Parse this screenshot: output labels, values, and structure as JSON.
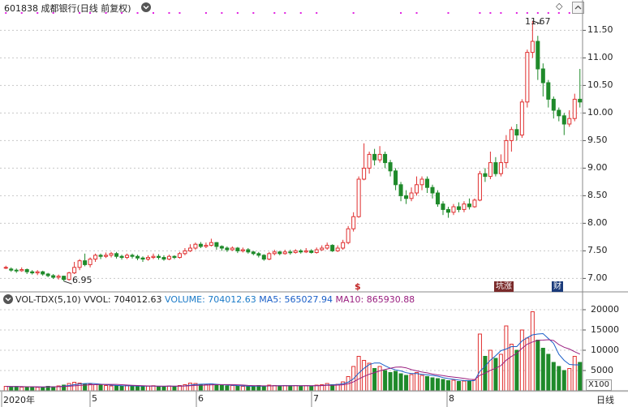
{
  "header": {
    "code": "601838",
    "name": "成都银行",
    "mode": "(日线 前复权)",
    "dropdown_icon": "chevron-down-icon",
    "diamond_icon": "diamond-icon",
    "scroll_icon": "chevron-up-icon"
  },
  "price_chart": {
    "axis_ticks": [
      "11.50",
      "11.00",
      "10.50",
      "10.00",
      "9.50",
      "9.00",
      "8.50",
      "8.00",
      "7.50",
      "7.00"
    ],
    "high_label": "11.67",
    "low_label": "6.95",
    "markers": [
      "$",
      "坑涨",
      "财"
    ]
  },
  "volume_panel": {
    "indicator": "VOL-TDX(5,10)",
    "vvol": "VVOL: 704012.63",
    "volume": "VOLUME: 704012.63",
    "ma5": "MA5: 565027.94",
    "ma10": "MA10: 865930.88",
    "axis_ticks": [
      "20000",
      "15000",
      "10000",
      "5000"
    ],
    "unit": "X100"
  },
  "time_axis": {
    "labels": [
      "2020年",
      "5",
      "6",
      "7",
      "8"
    ],
    "period": "日线"
  },
  "colors": {
    "up": "#e03030",
    "down": "#1f8a2a",
    "ma5": "#1a5fc8",
    "ma10": "#9a2080",
    "grid": "#c8c8c8",
    "marker_dots": "#e020e0"
  },
  "chart_data": {
    "type": "candlestick",
    "price_range": [
      6.8,
      11.8
    ],
    "volume_range": [
      0,
      21000
    ],
    "candles": [
      [
        7.2,
        7.2,
        7.23,
        7.17
      ],
      [
        7.17,
        7.15,
        7.2,
        7.12
      ],
      [
        7.15,
        7.14,
        7.18,
        7.1
      ],
      [
        7.14,
        7.16,
        7.2,
        7.12
      ],
      [
        7.16,
        7.12,
        7.18,
        7.08
      ],
      [
        7.12,
        7.1,
        7.15,
        7.07
      ],
      [
        7.1,
        7.12,
        7.15,
        7.06
      ],
      [
        7.12,
        7.08,
        7.14,
        7.05
      ],
      [
        7.08,
        7.05,
        7.1,
        7.02
      ],
      [
        7.05,
        7.02,
        7.08,
        6.99
      ],
      [
        7.02,
        7.04,
        7.07,
        6.98
      ],
      [
        7.04,
        6.98,
        7.05,
        6.95
      ],
      [
        6.98,
        7.1,
        7.12,
        6.96
      ],
      [
        7.1,
        7.2,
        7.3,
        7.08
      ],
      [
        7.2,
        7.32,
        7.35,
        7.15
      ],
      [
        7.32,
        7.25,
        7.45,
        7.22
      ],
      [
        7.25,
        7.35,
        7.38,
        7.2
      ],
      [
        7.35,
        7.42,
        7.45,
        7.3
      ],
      [
        7.42,
        7.4,
        7.45,
        7.35
      ],
      [
        7.4,
        7.42,
        7.47,
        7.37
      ],
      [
        7.42,
        7.45,
        7.48,
        7.38
      ],
      [
        7.45,
        7.4,
        7.48,
        7.36
      ],
      [
        7.4,
        7.38,
        7.43,
        7.34
      ],
      [
        7.38,
        7.42,
        7.45,
        7.35
      ],
      [
        7.42,
        7.4,
        7.45,
        7.36
      ],
      [
        7.4,
        7.37,
        7.43,
        7.33
      ],
      [
        7.37,
        7.35,
        7.4,
        7.3
      ],
      [
        7.35,
        7.38,
        7.42,
        7.32
      ],
      [
        7.38,
        7.4,
        7.45,
        7.35
      ],
      [
        7.4,
        7.38,
        7.44,
        7.34
      ],
      [
        7.38,
        7.35,
        7.42,
        7.32
      ],
      [
        7.35,
        7.4,
        7.43,
        7.33
      ],
      [
        7.4,
        7.38,
        7.42,
        7.35
      ],
      [
        7.38,
        7.45,
        7.48,
        7.36
      ],
      [
        7.45,
        7.5,
        7.55,
        7.42
      ],
      [
        7.5,
        7.55,
        7.62,
        7.48
      ],
      [
        7.55,
        7.62,
        7.65,
        7.52
      ],
      [
        7.62,
        7.58,
        7.66,
        7.55
      ],
      [
        7.58,
        7.6,
        7.65,
        7.55
      ],
      [
        7.6,
        7.65,
        7.72,
        7.58
      ],
      [
        7.65,
        7.58,
        7.66,
        7.52
      ],
      [
        7.58,
        7.55,
        7.6,
        7.5
      ],
      [
        7.55,
        7.52,
        7.58,
        7.48
      ],
      [
        7.52,
        7.55,
        7.58,
        7.5
      ],
      [
        7.55,
        7.5,
        7.57,
        7.46
      ],
      [
        7.5,
        7.52,
        7.56,
        7.47
      ],
      [
        7.52,
        7.48,
        7.55,
        7.45
      ],
      [
        7.48,
        7.45,
        7.5,
        7.42
      ],
      [
        7.45,
        7.42,
        7.48,
        7.38
      ],
      [
        7.42,
        7.35,
        7.44,
        7.32
      ],
      [
        7.35,
        7.45,
        7.48,
        7.33
      ],
      [
        7.45,
        7.48,
        7.52,
        7.42
      ],
      [
        7.48,
        7.45,
        7.5,
        7.42
      ],
      [
        7.45,
        7.48,
        7.52,
        7.43
      ],
      [
        7.48,
        7.47,
        7.52,
        7.43
      ],
      [
        7.47,
        7.5,
        7.53,
        7.45
      ],
      [
        7.5,
        7.48,
        7.53,
        7.45
      ],
      [
        7.48,
        7.5,
        7.55,
        7.46
      ],
      [
        7.5,
        7.47,
        7.53,
        7.45
      ],
      [
        7.47,
        7.52,
        7.56,
        7.45
      ],
      [
        7.52,
        7.55,
        7.6,
        7.5
      ],
      [
        7.55,
        7.6,
        7.65,
        7.52
      ],
      [
        7.6,
        7.5,
        7.62,
        7.48
      ],
      [
        7.5,
        7.55,
        7.6,
        7.48
      ],
      [
        7.55,
        7.65,
        7.7,
        7.52
      ],
      [
        7.65,
        7.9,
        7.95,
        7.62
      ],
      [
        7.9,
        8.12,
        8.2,
        7.85
      ],
      [
        8.12,
        8.8,
        8.85,
        8.1
      ],
      [
        8.8,
        9.0,
        9.45,
        8.78
      ],
      [
        9.0,
        9.25,
        9.3,
        8.9
      ],
      [
        9.25,
        9.15,
        9.35,
        9.05
      ],
      [
        9.15,
        9.25,
        9.4,
        9.1
      ],
      [
        9.25,
        9.1,
        9.3,
        9.0
      ],
      [
        9.1,
        8.95,
        9.15,
        8.85
      ],
      [
        8.95,
        8.7,
        9.0,
        8.6
      ],
      [
        8.7,
        8.5,
        8.75,
        8.4
      ],
      [
        8.5,
        8.45,
        8.6,
        8.35
      ],
      [
        8.45,
        8.55,
        8.65,
        8.4
      ],
      [
        8.55,
        8.7,
        8.85,
        8.5
      ],
      [
        8.7,
        8.8,
        8.85,
        8.6
      ],
      [
        8.8,
        8.65,
        8.85,
        8.55
      ],
      [
        8.65,
        8.55,
        8.7,
        8.45
      ],
      [
        8.55,
        8.35,
        8.6,
        8.3
      ],
      [
        8.35,
        8.25,
        8.4,
        8.15
      ],
      [
        8.25,
        8.2,
        8.3,
        8.1
      ],
      [
        8.2,
        8.3,
        8.35,
        8.15
      ],
      [
        8.3,
        8.25,
        8.38,
        8.2
      ],
      [
        8.25,
        8.35,
        8.4,
        8.2
      ],
      [
        8.35,
        8.3,
        8.45,
        8.25
      ],
      [
        8.3,
        8.42,
        8.45,
        8.28
      ],
      [
        8.42,
        8.9,
        8.95,
        8.4
      ],
      [
        8.9,
        8.85,
        9.0,
        8.75
      ],
      [
        8.85,
        9.1,
        9.3,
        8.8
      ],
      [
        9.1,
        8.9,
        9.2,
        8.85
      ],
      [
        8.9,
        9.1,
        9.25,
        8.85
      ],
      [
        9.1,
        9.5,
        9.6,
        9.0
      ],
      [
        9.5,
        9.7,
        9.75,
        9.3
      ],
      [
        9.7,
        9.6,
        9.8,
        9.5
      ],
      [
        9.6,
        10.2,
        10.25,
        9.55
      ],
      [
        10.2,
        11.1,
        11.15,
        10.1
      ],
      [
        11.1,
        11.3,
        11.67,
        11.0
      ],
      [
        11.3,
        10.8,
        11.4,
        10.6
      ],
      [
        10.8,
        10.55,
        10.9,
        10.3
      ],
      [
        10.55,
        10.25,
        10.6,
        10.1
      ],
      [
        10.25,
        10.05,
        10.3,
        9.9
      ],
      [
        10.05,
        9.95,
        10.1,
        9.85
      ],
      [
        9.95,
        9.8,
        10.0,
        9.6
      ],
      [
        9.8,
        9.9,
        10.05,
        9.75
      ],
      [
        9.9,
        10.25,
        10.35,
        9.85
      ],
      [
        10.25,
        10.2,
        10.8,
        10.1
      ]
    ],
    "volumes": [
      1100,
      1000,
      1050,
      900,
      950,
      1000,
      850,
      900,
      1100,
      1000,
      1200,
      1400,
      1800,
      2100,
      1900,
      1700,
      1600,
      1500,
      1400,
      1300,
      1200,
      1250,
      1100,
      1300,
      1200,
      1100,
      1000,
      1150,
      1250,
      1100,
      1000,
      1200,
      1100,
      1300,
      1500,
      1900,
      1800,
      1600,
      1500,
      1700,
      1400,
      1300,
      1200,
      1300,
      1200,
      1100,
      1000,
      1100,
      1300,
      1200,
      1400,
      1300,
      1200,
      1300,
      1250,
      1300,
      1200,
      1250,
      1150,
      1400,
      1500,
      1800,
      1500,
      1600,
      2200,
      3500,
      6000,
      8500,
      7500,
      6800,
      5500,
      6000,
      5000,
      4500,
      4800,
      4200,
      3800,
      4000,
      4500,
      3800,
      3500,
      3200,
      3000,
      2800,
      2500,
      2600,
      2300,
      2400,
      2500,
      2800,
      14000,
      8500,
      10000,
      8000,
      9000,
      16000,
      11500,
      10000,
      15000,
      13000,
      19500,
      12500,
      10500,
      9000,
      7000,
      6000,
      5000,
      5500,
      8500,
      7000
    ]
  }
}
